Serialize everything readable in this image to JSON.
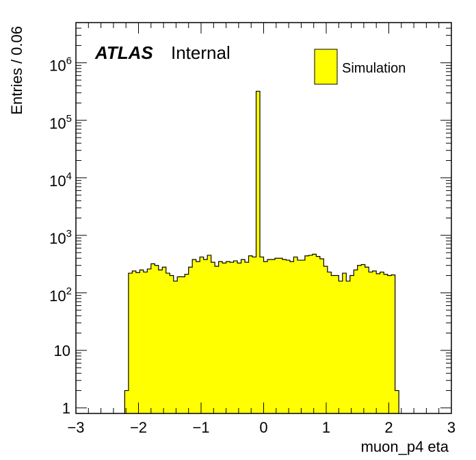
{
  "chart_data": {
    "type": "histogram",
    "xlabel": "muon_p4 eta",
    "ylabel": "Entries / 0.06",
    "x_range": [
      -3,
      3
    ],
    "y_range": [
      0.8,
      5000000
    ],
    "y_scale": "log",
    "bin_width": 0.06,
    "x_ticks": [
      "−3",
      "−2",
      "−1",
      "0",
      "1",
      "2",
      "3"
    ],
    "y_ticks": [
      {
        "value": 1,
        "base": "1",
        "exp": ""
      },
      {
        "value": 10,
        "base": "10",
        "exp": ""
      },
      {
        "value": 100,
        "base": "10",
        "exp": "2"
      },
      {
        "value": 1000,
        "base": "10",
        "exp": "3"
      },
      {
        "value": 10000,
        "base": "10",
        "exp": "4"
      },
      {
        "value": 100000,
        "base": "10",
        "exp": "5"
      },
      {
        "value": 1000000,
        "base": "10",
        "exp": "6"
      }
    ],
    "fill_color": "#ffff00",
    "line_color": "#000000",
    "series": [
      {
        "name": "Simulation",
        "bins_x_low": [
          -2.22,
          -2.16,
          -2.1,
          -2.04,
          -1.98,
          -1.92,
          -1.86,
          -1.8,
          -1.74,
          -1.68,
          -1.62,
          -1.56,
          -1.5,
          -1.44,
          -1.38,
          -1.32,
          -1.26,
          -1.2,
          -1.14,
          -1.08,
          -1.02,
          -0.96,
          -0.9,
          -0.84,
          -0.78,
          -0.72,
          -0.66,
          -0.6,
          -0.54,
          -0.48,
          -0.42,
          -0.36,
          -0.3,
          -0.24,
          -0.18,
          -0.12,
          -0.06,
          0.0,
          0.06,
          0.12,
          0.18,
          0.24,
          0.3,
          0.36,
          0.42,
          0.48,
          0.54,
          0.6,
          0.66,
          0.72,
          0.78,
          0.84,
          0.9,
          0.96,
          1.02,
          1.08,
          1.14,
          1.2,
          1.26,
          1.32,
          1.38,
          1.44,
          1.5,
          1.56,
          1.62,
          1.68,
          1.74,
          1.8,
          1.86,
          1.92,
          1.98,
          2.04,
          2.1
        ],
        "values": [
          2,
          220,
          240,
          225,
          250,
          230,
          260,
          320,
          300,
          250,
          280,
          220,
          200,
          160,
          190,
          190,
          210,
          280,
          380,
          350,
          420,
          380,
          450,
          340,
          290,
          350,
          330,
          350,
          340,
          360,
          330,
          380,
          340,
          440,
          420,
          320000,
          420,
          350,
          380,
          380,
          400,
          400,
          380,
          370,
          350,
          420,
          370,
          370,
          440,
          450,
          470,
          430,
          390,
          290,
          230,
          200,
          200,
          160,
          220,
          160,
          200,
          250,
          300,
          310,
          280,
          230,
          240,
          215,
          230,
          210,
          200,
          205,
          2
        ]
      }
    ],
    "legend": {
      "label": "Simulation",
      "placement": "top-right"
    },
    "annotation": {
      "bold": "ATLAS",
      "normal": "Internal"
    }
  }
}
